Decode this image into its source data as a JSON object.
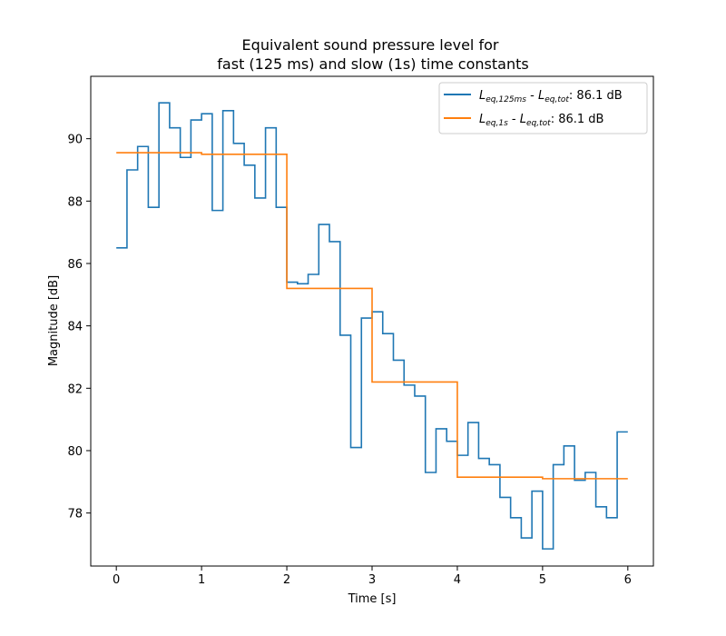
{
  "chart_data": {
    "type": "line",
    "title_line1": "Equivalent sound pressure level for",
    "title_line2": "fast (125 ms) and slow (1s) time constants",
    "xlabel": "Time [s]",
    "ylabel": "Magnitude [dB]",
    "xlim": [
      -0.3,
      6.3
    ],
    "ylim": [
      76.3,
      92.0
    ],
    "xticks": [
      0,
      1,
      2,
      3,
      4,
      5,
      6
    ],
    "yticks": [
      78,
      80,
      82,
      84,
      86,
      88,
      90
    ],
    "legend_position": "top-right",
    "series": [
      {
        "name": "fast",
        "legend_main": "L",
        "legend_sub1": "eq,125ms",
        "legend_mid": " - ",
        "legend_main2": "L",
        "legend_sub2": "eq,tot",
        "legend_value": ": 86.1 dB",
        "color": "#1f77b4",
        "step": "post",
        "x": [
          0,
          0.125,
          0.25,
          0.375,
          0.5,
          0.625,
          0.75,
          0.875,
          1.0,
          1.125,
          1.25,
          1.375,
          1.5,
          1.625,
          1.75,
          1.875,
          2.0,
          2.125,
          2.25,
          2.375,
          2.5,
          2.625,
          2.75,
          2.875,
          3.0,
          3.125,
          3.25,
          3.375,
          3.5,
          3.625,
          3.75,
          3.875,
          4.0,
          4.125,
          4.25,
          4.375,
          4.5,
          4.625,
          4.75,
          4.875,
          5.0,
          5.125,
          5.25,
          5.375,
          5.5,
          5.625,
          5.75,
          5.875,
          6.0
        ],
        "values": [
          86.5,
          89.0,
          89.75,
          87.8,
          91.15,
          90.35,
          89.4,
          90.6,
          90.8,
          87.7,
          90.9,
          89.85,
          89.15,
          88.1,
          90.35,
          87.8,
          85.4,
          85.35,
          85.65,
          87.25,
          86.7,
          83.7,
          80.1,
          84.25,
          84.45,
          83.75,
          82.9,
          82.1,
          81.75,
          79.3,
          80.7,
          80.3,
          79.85,
          80.9,
          79.75,
          79.55,
          78.5,
          77.85,
          77.2,
          78.7,
          76.85,
          79.55,
          80.15,
          79.05,
          79.3,
          78.2,
          77.85,
          80.6,
          80.6
        ]
      },
      {
        "name": "slow",
        "legend_main": "L",
        "legend_sub1": "eq,1s",
        "legend_mid": " - ",
        "legend_main2": "L",
        "legend_sub2": "eq,tot",
        "legend_value": ": 86.1 dB",
        "color": "#ff7f0e",
        "step": "post",
        "x": [
          0,
          1,
          2,
          3,
          4,
          5,
          6
        ],
        "values": [
          89.55,
          89.5,
          85.2,
          82.2,
          79.15,
          79.1,
          79.1
        ]
      }
    ]
  }
}
